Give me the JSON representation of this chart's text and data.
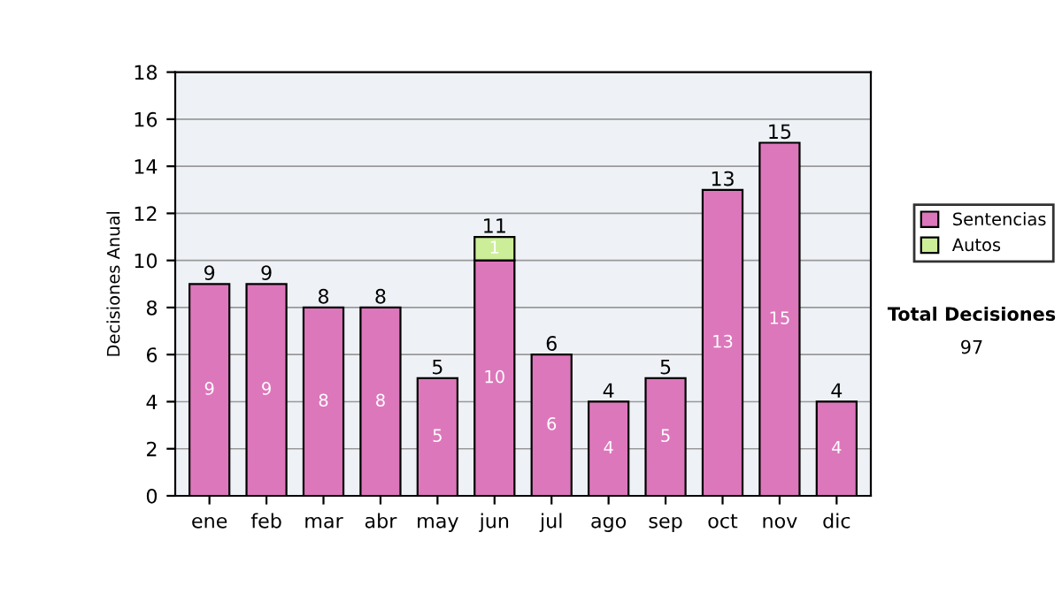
{
  "chart_data": {
    "type": "bar",
    "stacked": true,
    "ylabel": "Decisiones Anual",
    "categories": [
      "ene",
      "feb",
      "mar",
      "abr",
      "may",
      "jun",
      "jul",
      "ago",
      "sep",
      "oct",
      "nov",
      "dic"
    ],
    "series": [
      {
        "name": "Sentencias",
        "color": "#dd77bb",
        "values": [
          9,
          9,
          8,
          8,
          5,
          10,
          6,
          4,
          5,
          13,
          15,
          4
        ],
        "value_labels": [
          "9",
          "9",
          "8",
          "8",
          "5",
          "10",
          "6",
          "4",
          "5",
          "13",
          "15",
          "4"
        ]
      },
      {
        "name": "Autos",
        "color": "#ccee99",
        "values": [
          null,
          null,
          null,
          null,
          null,
          1,
          null,
          null,
          null,
          null,
          null,
          null
        ],
        "value_labels": [
          null,
          null,
          null,
          null,
          null,
          "1",
          null,
          null,
          null,
          null,
          null,
          null
        ]
      }
    ],
    "totals": [
      "9",
      "9",
      "8",
      "8",
      "5",
      "11",
      "6",
      "4",
      "5",
      "13",
      "15",
      "4"
    ],
    "ylim": [
      0,
      18
    ],
    "yticks": [
      0,
      2,
      4,
      6,
      8,
      10,
      12,
      14,
      16,
      18
    ],
    "grid": "y",
    "legend": "right",
    "annotations": [
      "Total Decisiones",
      "97"
    ]
  }
}
